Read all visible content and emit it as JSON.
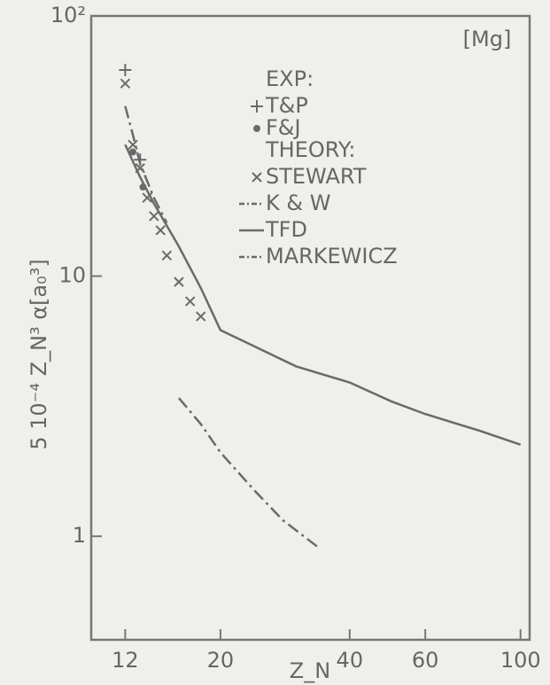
{
  "chart_data": {
    "type": "line",
    "annotation": "[Mg]",
    "x_label": "Z_N",
    "y_label": "5 10⁻⁴ Z_N³ α[a₀³]",
    "log_x": true,
    "log_y": true,
    "xlim": [
      10,
      105
    ],
    "ylim": [
      0.4,
      100
    ],
    "xticks": [
      12,
      20,
      40,
      60,
      100
    ],
    "yticks": [
      1,
      10,
      {
        "value": 100,
        "label": "10²"
      }
    ],
    "legend_headers": [
      "EXP:",
      "THEORY:"
    ],
    "series": [
      {
        "name": "T&P",
        "style": "plus",
        "color": "#6a6a6a",
        "x": [
          12,
          13
        ],
        "values": [
          62,
          28
        ]
      },
      {
        "name": "F&J",
        "style": "dot",
        "color": "#6a6a6a",
        "x": [
          12.5,
          13.2
        ],
        "values": [
          30,
          22
        ]
      },
      {
        "name": "STEWART",
        "style": "cross",
        "color": "#6a6a6a",
        "x": [
          12,
          12.5,
          13,
          13.5,
          14,
          14.5,
          15,
          16,
          17,
          18
        ],
        "values": [
          55,
          32,
          26,
          20,
          17,
          15,
          12,
          9.5,
          8,
          7
        ]
      },
      {
        "name": "K & W",
        "style": "dashdot",
        "color": "#6a6a6a",
        "x": [
          12,
          12.5,
          13,
          14,
          15
        ],
        "values": [
          45,
          35,
          27,
          20,
          16
        ]
      },
      {
        "name": "TFD",
        "style": "solid",
        "color": "#6a6a6a",
        "x": [
          12,
          13,
          14,
          16,
          18,
          20,
          25,
          30,
          40,
          50,
          60,
          80,
          100
        ],
        "values": [
          32,
          24,
          19,
          13,
          9,
          6.2,
          5.2,
          4.5,
          3.9,
          3.3,
          2.95,
          2.55,
          2.25
        ]
      },
      {
        "name": "MARKEWICZ",
        "style": "dashdot",
        "color": "#6a6a6a",
        "x": [
          16,
          18,
          20,
          24,
          28,
          34
        ],
        "values": [
          3.4,
          2.7,
          2.1,
          1.5,
          1.15,
          0.9
        ]
      }
    ]
  }
}
